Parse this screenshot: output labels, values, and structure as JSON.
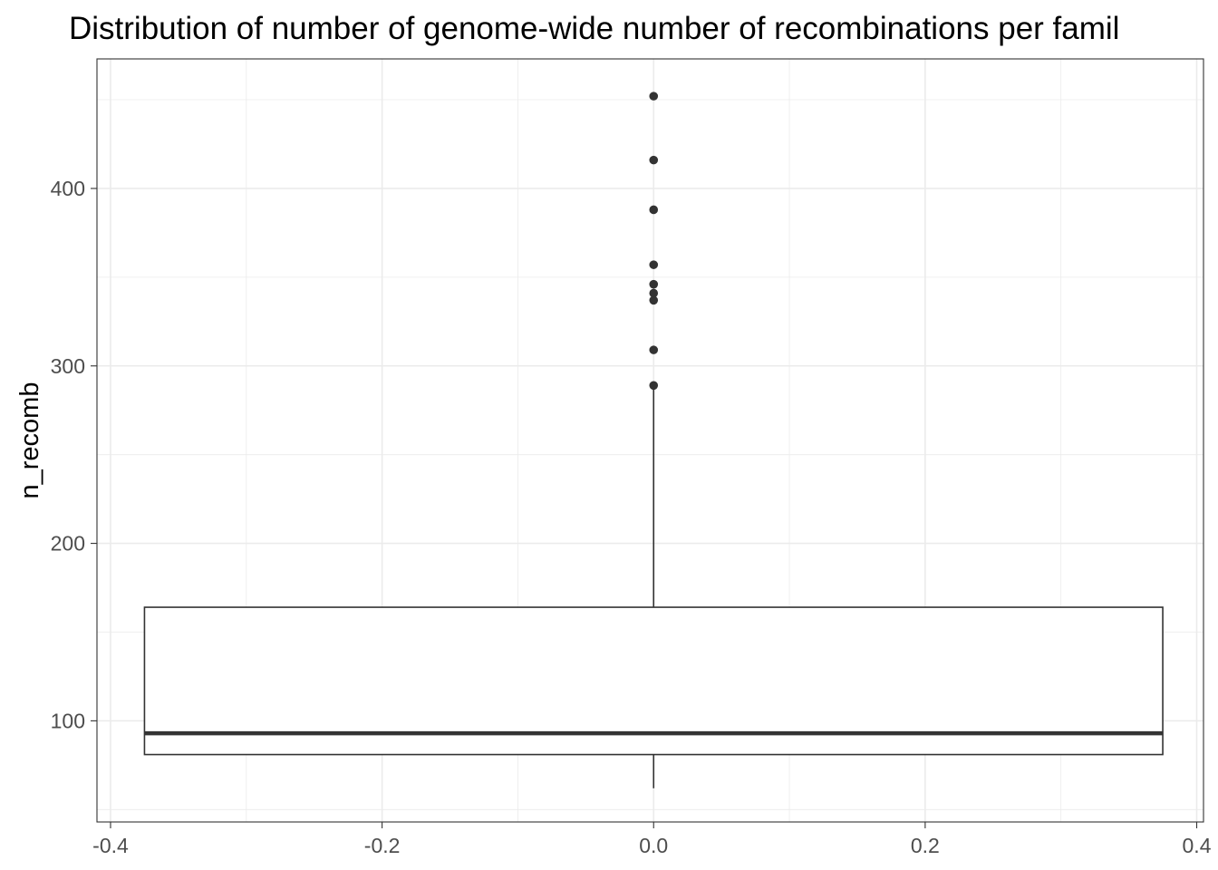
{
  "chart_data": {
    "type": "boxplot",
    "title": "Distribution of number of genome-wide number of recombinations per famil",
    "xlabel": "",
    "ylabel": "n_recomb",
    "xlim": [
      -0.41,
      0.405
    ],
    "ylim": [
      43,
      473
    ],
    "x_ticks": [
      -0.4,
      -0.2,
      0.0,
      0.2,
      0.4
    ],
    "x_tick_labels": [
      "-0.4",
      "-0.2",
      "0.0",
      "0.2",
      "0.4"
    ],
    "y_ticks": [
      100,
      200,
      300,
      400
    ],
    "y_tick_labels": [
      "100",
      "200",
      "300",
      "400"
    ],
    "grid": true,
    "box": {
      "x_center": 0.0,
      "x_min": -0.375,
      "x_max": 0.375,
      "lower_whisker": 62,
      "q1": 81,
      "median": 93,
      "q3": 164,
      "upper_whisker": 289
    },
    "outliers": [
      289,
      309,
      337,
      341,
      346,
      357,
      388,
      416,
      452
    ],
    "colors": {
      "box_stroke": "#333333",
      "outlier": "#333333",
      "panel_border": "#333333",
      "grid": "#ebebeb",
      "tick_label": "#4d4d4d"
    }
  }
}
